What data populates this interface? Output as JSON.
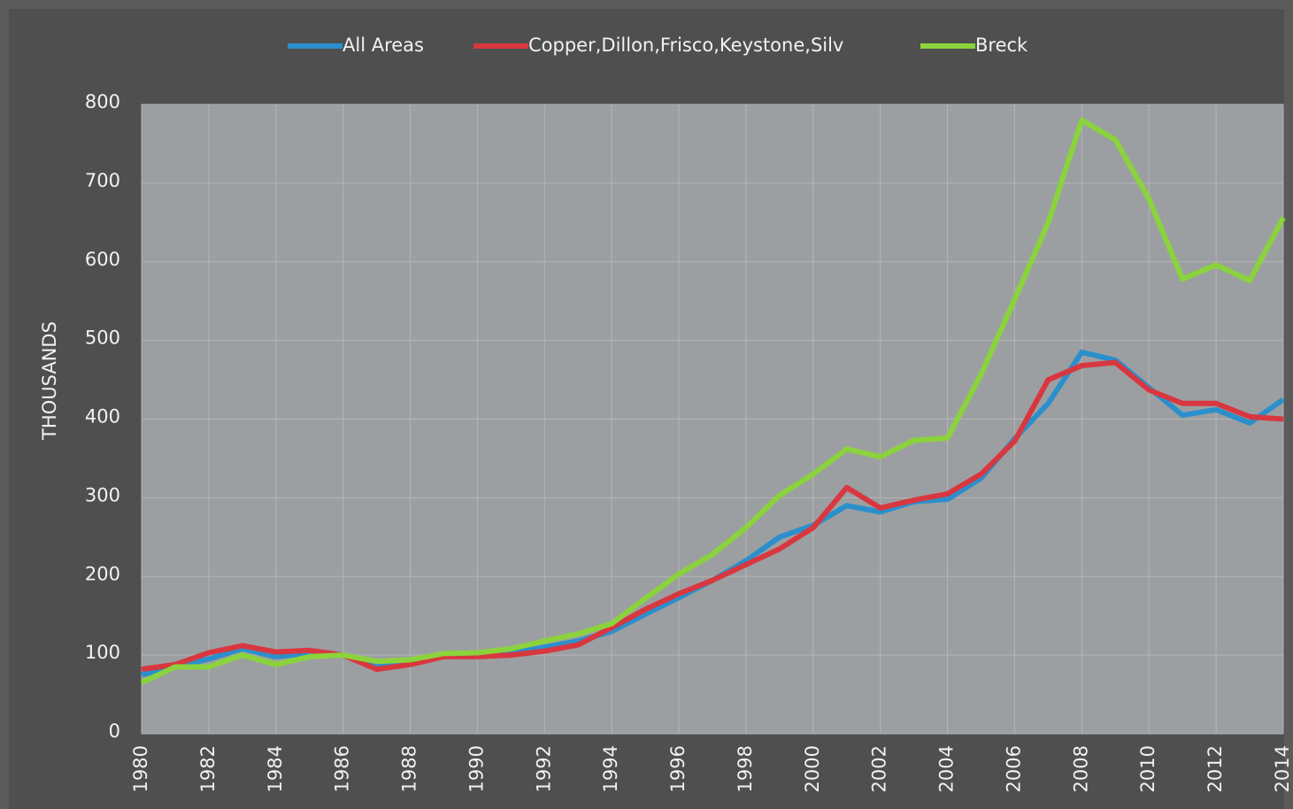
{
  "chart_data": {
    "type": "line",
    "y_label": "THOUSANDS",
    "x": [
      1980,
      1981,
      1982,
      1983,
      1984,
      1985,
      1986,
      1987,
      1988,
      1989,
      1990,
      1991,
      1992,
      1993,
      1994,
      1995,
      1996,
      1997,
      1998,
      1999,
      2000,
      2001,
      2002,
      2003,
      2004,
      2005,
      2006,
      2007,
      2008,
      2009,
      2010,
      2011,
      2012,
      2013,
      2014
    ],
    "series": [
      {
        "name": "All Areas",
        "color": "#2b8fcc",
        "values": [
          75,
          85,
          95,
          108,
          98,
          102,
          100,
          85,
          90,
          98,
          100,
          102,
          110,
          118,
          130,
          152,
          173,
          195,
          220,
          250,
          265,
          290,
          282,
          295,
          298,
          325,
          375,
          420,
          485,
          475,
          440,
          405,
          412,
          395,
          425
        ]
      },
      {
        "name": "Copper,Dillon,Frisco,Keystone,Silv",
        "color": "#d9373f",
        "values": [
          82,
          88,
          103,
          112,
          104,
          106,
          100,
          82,
          88,
          98,
          98,
          100,
          105,
          113,
          135,
          158,
          178,
          195,
          215,
          235,
          262,
          313,
          287,
          297,
          305,
          330,
          372,
          450,
          468,
          472,
          437,
          420,
          420,
          403,
          400
        ]
      },
      {
        "name": "Breck",
        "color": "#8bd33c",
        "values": [
          65,
          85,
          85,
          100,
          88,
          98,
          100,
          92,
          94,
          102,
          103,
          108,
          118,
          127,
          140,
          172,
          203,
          228,
          262,
          303,
          330,
          362,
          352,
          373,
          376,
          457,
          552,
          650,
          780,
          755,
          680,
          578,
          596,
          576,
          656
        ]
      }
    ],
    "xlim": [
      1980,
      2014
    ],
    "xticks": [
      1980,
      1982,
      1984,
      1986,
      1988,
      1990,
      1992,
      1994,
      1996,
      1998,
      2000,
      2002,
      2004,
      2006,
      2008,
      2010,
      2012,
      2014
    ],
    "ylim": [
      0,
      800
    ],
    "yticks": [
      0,
      100,
      200,
      300,
      400,
      500,
      600,
      700,
      800
    ],
    "grid": true,
    "legend": "top"
  }
}
